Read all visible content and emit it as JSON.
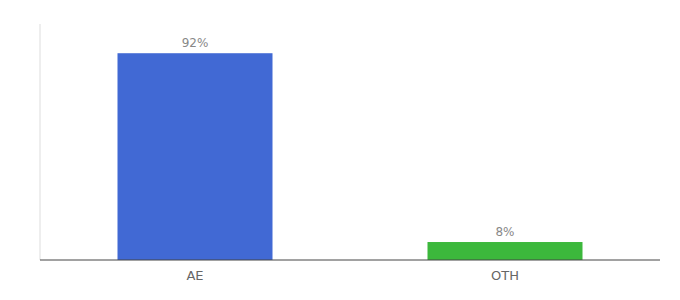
{
  "chart_data": {
    "type": "bar",
    "categories": [
      "AE",
      "OTH"
    ],
    "values": [
      92,
      8
    ],
    "value_labels": [
      "92%",
      "8%"
    ],
    "colors": [
      "#4169d4",
      "#3cb83c"
    ],
    "ylim": [
      0,
      105
    ],
    "data_labels": true,
    "tick_labels": "x",
    "grid": false
  }
}
